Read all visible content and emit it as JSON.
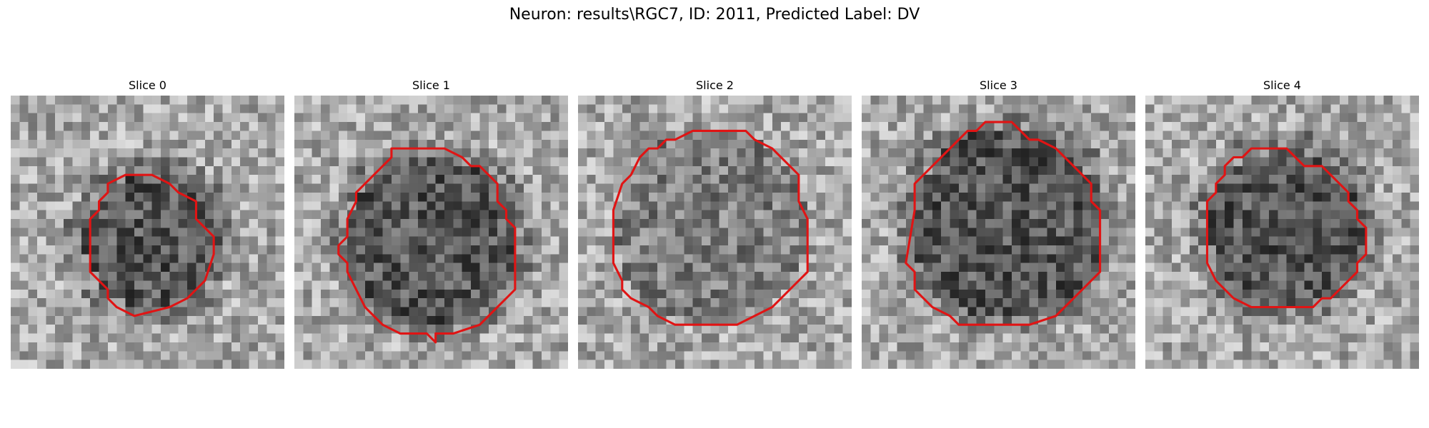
{
  "figure": {
    "title": "Neuron: results\\RGC7, ID: 2011, Predicted Label: DV"
  },
  "colors": {
    "contour": "#e01414",
    "background": "#ffffff",
    "text": "#000000",
    "image_colormap": "gray"
  },
  "slices": [
    {
      "title": "Slice 0"
    },
    {
      "title": "Slice 1"
    },
    {
      "title": "Slice 2"
    },
    {
      "title": "Slice 3"
    },
    {
      "title": "Slice 4"
    }
  ]
}
